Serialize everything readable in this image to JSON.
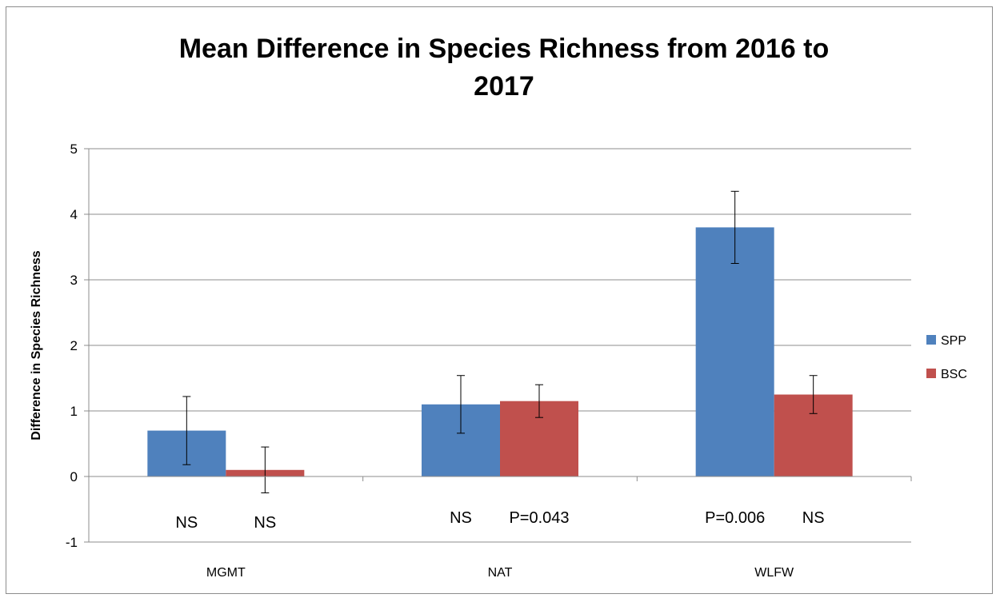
{
  "chart_data": {
    "type": "bar",
    "title_lines": [
      "Mean Difference in Species Richness from 2016 to",
      "2017"
    ],
    "xlabel": "",
    "ylabel": "Difference in Species Richness",
    "ylim": [
      -1,
      5
    ],
    "yticks": [
      -1,
      0,
      1,
      2,
      3,
      4,
      5
    ],
    "grid": true,
    "legend_position": "right",
    "categories": [
      "MGMT",
      "NAT",
      "WLFW"
    ],
    "series": [
      {
        "name": "SPP",
        "color": "#4f81bd",
        "values": [
          0.7,
          1.1,
          3.8
        ],
        "error": [
          0.52,
          0.44,
          0.55
        ],
        "annotations": [
          "NS",
          "NS",
          "P=0.006"
        ]
      },
      {
        "name": "BSC",
        "color": "#c0504d",
        "values": [
          0.1,
          1.15,
          1.25
        ],
        "error": [
          0.35,
          0.25,
          0.29
        ],
        "annotations": [
          "NS",
          "P=0.043",
          "NS"
        ]
      }
    ]
  }
}
